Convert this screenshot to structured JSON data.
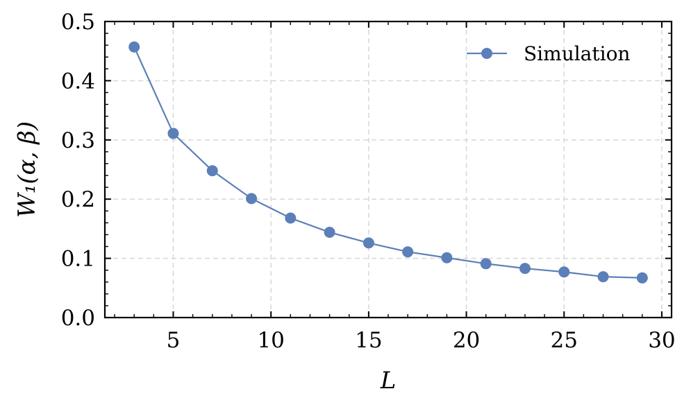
{
  "chart_data": {
    "type": "line",
    "xlabel": "L",
    "ylabel": "W₁(α, β)",
    "xlim": [
      1.5,
      30.5
    ],
    "ylim": [
      0.0,
      0.5
    ],
    "x_ticks": [
      5,
      10,
      15,
      20,
      25,
      30
    ],
    "x_tick_labels": [
      "5",
      "10",
      "15",
      "20",
      "25",
      "30"
    ],
    "y_ticks": [
      0.0,
      0.1,
      0.2,
      0.3,
      0.4,
      0.5
    ],
    "y_tick_labels": [
      "0.0",
      "0.1",
      "0.2",
      "0.3",
      "0.4",
      "0.5"
    ],
    "grid": true,
    "legend_position": "top-right",
    "series": [
      {
        "name": "Simulation",
        "color": "#5b7fb8",
        "marker": "circle",
        "x": [
          3,
          5,
          7,
          9,
          11,
          13,
          15,
          17,
          19,
          21,
          23,
          25,
          27,
          29
        ],
        "y": [
          0.457,
          0.311,
          0.248,
          0.201,
          0.168,
          0.144,
          0.126,
          0.111,
          0.101,
          0.091,
          0.083,
          0.077,
          0.069,
          0.067
        ]
      }
    ]
  }
}
